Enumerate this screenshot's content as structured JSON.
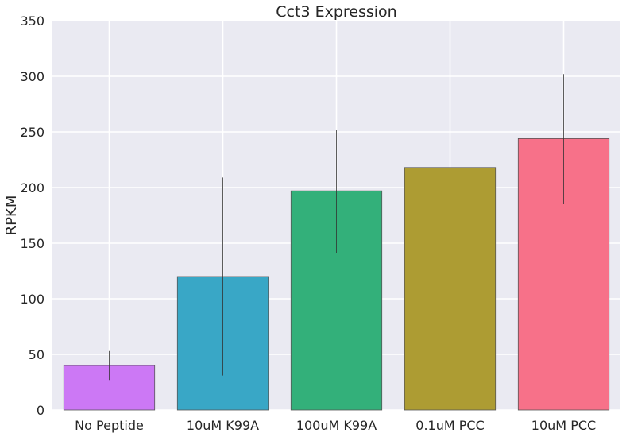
{
  "chart_data": {
    "type": "bar",
    "title": "Cct3 Expression",
    "xlabel": "",
    "ylabel": "RPKM",
    "categories": [
      "No Peptide",
      "10uM K99A",
      "100uM K99A",
      "0.1uM PCC",
      "10uM PCC"
    ],
    "values": [
      40,
      120,
      197,
      218,
      244
    ],
    "error_low": [
      27,
      31,
      141,
      140,
      185
    ],
    "error_high": [
      53,
      209,
      252,
      295,
      302
    ],
    "colors": [
      "#cc78f5",
      "#39a7c6",
      "#33b07a",
      "#ad9c33",
      "#f77189"
    ],
    "ylim": [
      0,
      350
    ],
    "yticks": [
      0,
      50,
      100,
      150,
      200,
      250,
      300,
      350
    ],
    "grid": true,
    "legend": "none"
  }
}
